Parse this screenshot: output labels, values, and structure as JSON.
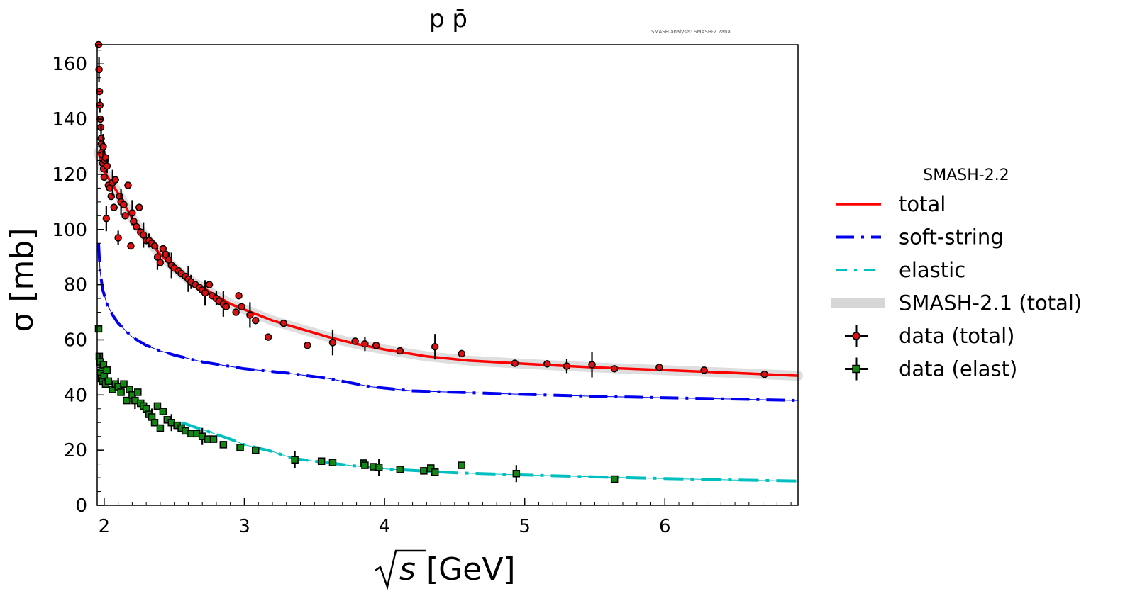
{
  "chart_data": {
    "type": "line",
    "title": "p p̄",
    "watermark": "SMASH analysis: SMASH-2.2ana",
    "xlabel": "[GeV]",
    "xlabel_symbol": "s",
    "ylabel": "σ [mb]",
    "xlim": [
      1.95,
      6.95
    ],
    "ylim": [
      0,
      167
    ],
    "x_ticks": [
      2,
      3,
      4,
      5,
      6
    ],
    "y_ticks": [
      0,
      20,
      40,
      60,
      80,
      100,
      120,
      140,
      160
    ],
    "grid": false,
    "legend": {
      "placement": "right, outside plot",
      "title": "SMASH-2.2",
      "entries": [
        "total",
        "soft-string",
        "elastic",
        "SMASH-2.1 (total)",
        "data (total)",
        "data (elast)"
      ]
    },
    "series": [
      {
        "name": "total",
        "style": "solid",
        "color": "#ff0000",
        "x": [
          1.96,
          1.98,
          2.0,
          2.05,
          2.1,
          2.2,
          2.3,
          2.4,
          2.5,
          2.6,
          2.7,
          2.8,
          2.9,
          3.0,
          3.2,
          3.4,
          3.6,
          3.8,
          4.0,
          4.3,
          4.6,
          5.0,
          5.5,
          6.0,
          6.5,
          6.95
        ],
        "y": [
          128,
          124,
          121,
          117,
          113,
          104,
          97,
          91,
          86,
          82,
          79,
          76,
          73,
          71,
          67,
          64,
          61,
          58.5,
          56.5,
          54,
          52.5,
          51.3,
          50,
          49,
          48,
          47
        ]
      },
      {
        "name": "soft-string",
        "style": "dashed",
        "color": "#0000ee",
        "x": [
          1.96,
          1.97,
          1.99,
          2.02,
          2.06,
          2.1,
          2.2,
          2.3,
          2.4,
          2.5,
          2.7,
          3.0,
          3.3,
          3.6,
          3.9,
          4.2,
          4.5,
          5.0,
          5.5,
          6.0,
          6.5,
          6.95
        ],
        "y": [
          95,
          85,
          78,
          73,
          69,
          66,
          61,
          58,
          56,
          54.5,
          52,
          49.5,
          48,
          46,
          43,
          41.5,
          41,
          40.2,
          39.5,
          39,
          38.5,
          38
        ]
      },
      {
        "name": "elastic",
        "style": "dashdot",
        "color": "#00bfbf",
        "x": [
          2.55,
          2.7,
          2.9,
          3.0,
          3.2,
          3.35,
          3.5,
          3.8,
          4.0,
          4.5,
          5.0,
          5.5,
          6.0,
          6.5,
          6.95
        ],
        "y": [
          30,
          27.5,
          24,
          22,
          19.5,
          17,
          16,
          14.2,
          13.2,
          11.8,
          11,
          10.3,
          9.7,
          9.2,
          8.8
        ]
      },
      {
        "name": "SMASH-2.1 (total)",
        "style": "band",
        "color": "#c8c8c8",
        "x": [
          1.96,
          1.98,
          2.0,
          2.05,
          2.1,
          2.2,
          2.3,
          2.4,
          2.5,
          2.6,
          2.7,
          2.8,
          2.9,
          3.0,
          3.2,
          3.4,
          3.6,
          3.8,
          4.0,
          4.3,
          4.6,
          5.0,
          5.5,
          6.0,
          6.5,
          6.95
        ],
        "y": [
          128,
          124,
          121,
          117,
          113,
          104,
          97,
          91,
          86,
          82,
          79,
          76,
          73,
          71,
          67,
          64,
          61,
          58.5,
          56.5,
          54,
          52.5,
          51.3,
          50,
          49,
          48,
          47
        ]
      }
    ],
    "points": [
      {
        "name": "data (total)",
        "marker": "circle",
        "color": "#dd1111",
        "x": [
          1.96,
          1.963,
          1.966,
          1.969,
          1.972,
          1.975,
          1.978,
          1.98,
          1.983,
          1.986,
          1.99,
          1.993,
          1.996,
          2.0,
          2.005,
          2.01,
          2.015,
          2.02,
          2.03,
          2.04,
          2.05,
          2.06,
          2.07,
          2.08,
          2.1,
          2.11,
          2.12,
          2.14,
          2.15,
          2.17,
          2.19,
          2.2,
          2.21,
          2.23,
          2.25,
          2.26,
          2.28,
          2.3,
          2.32,
          2.34,
          2.36,
          2.38,
          2.4,
          2.42,
          2.44,
          2.46,
          2.48,
          2.5,
          2.53,
          2.55,
          2.58,
          2.6,
          2.62,
          2.65,
          2.68,
          2.7,
          2.72,
          2.75,
          2.77,
          2.8,
          2.82,
          2.85,
          2.87,
          2.94,
          2.96,
          2.98,
          3.04,
          3.08,
          3.17,
          3.28,
          3.45,
          3.63,
          3.79,
          3.86,
          3.94,
          4.11,
          4.36,
          4.55,
          4.93,
          5.16,
          5.3,
          5.48,
          5.64,
          5.96,
          6.28,
          6.71
        ],
        "y": [
          167,
          158,
          150,
          145,
          140,
          137,
          133,
          131,
          128,
          127,
          124,
          130,
          122,
          119,
          125,
          126,
          104,
          123,
          116,
          115,
          112,
          117,
          108,
          118,
          97,
          112,
          110,
          109,
          105,
          116,
          94,
          106,
          103,
          101,
          108,
          99,
          98,
          96,
          96,
          95,
          94,
          90,
          88,
          93,
          91,
          89,
          87,
          86,
          85,
          84,
          83,
          82,
          81,
          80,
          79,
          78,
          77,
          80,
          76,
          75,
          74,
          73,
          72,
          70,
          76,
          72,
          69,
          67,
          61,
          66,
          58,
          59,
          59.5,
          58.5,
          58,
          56,
          57.5,
          55,
          51.5,
          51.3,
          50.5,
          51,
          49.5,
          50,
          49,
          47.5
        ]
      },
      {
        "name": "data (elast)",
        "marker": "square",
        "color": "#118811",
        "x": [
          1.96,
          1.965,
          1.97,
          1.975,
          1.98,
          1.985,
          1.99,
          1.995,
          2.0,
          2.01,
          2.02,
          2.03,
          2.06,
          2.08,
          2.1,
          2.12,
          2.14,
          2.16,
          2.18,
          2.2,
          2.22,
          2.24,
          2.26,
          2.28,
          2.3,
          2.32,
          2.34,
          2.36,
          2.38,
          2.4,
          2.42,
          2.45,
          2.48,
          2.52,
          2.55,
          2.58,
          2.62,
          2.66,
          2.7,
          2.74,
          2.78,
          2.85,
          2.97,
          3.08,
          3.36,
          3.55,
          3.63,
          3.85,
          3.86,
          3.92,
          3.96,
          4.11,
          4.28,
          4.33,
          4.36,
          4.55,
          4.94,
          5.64
        ],
        "y": [
          64,
          54,
          52,
          48,
          46,
          50,
          45,
          51,
          47,
          44,
          49,
          45,
          42,
          44,
          43,
          41,
          44,
          38,
          42,
          40,
          38,
          41,
          37,
          36,
          35,
          33,
          32,
          30,
          36,
          28,
          34,
          31,
          30,
          29,
          28,
          27,
          26,
          26,
          25,
          24,
          24,
          22,
          21,
          20,
          16.5,
          16,
          15.5,
          15.3,
          14.5,
          14,
          13.8,
          13,
          12.5,
          13.5,
          12,
          14.5,
          11.5,
          9.5
        ]
      }
    ]
  }
}
